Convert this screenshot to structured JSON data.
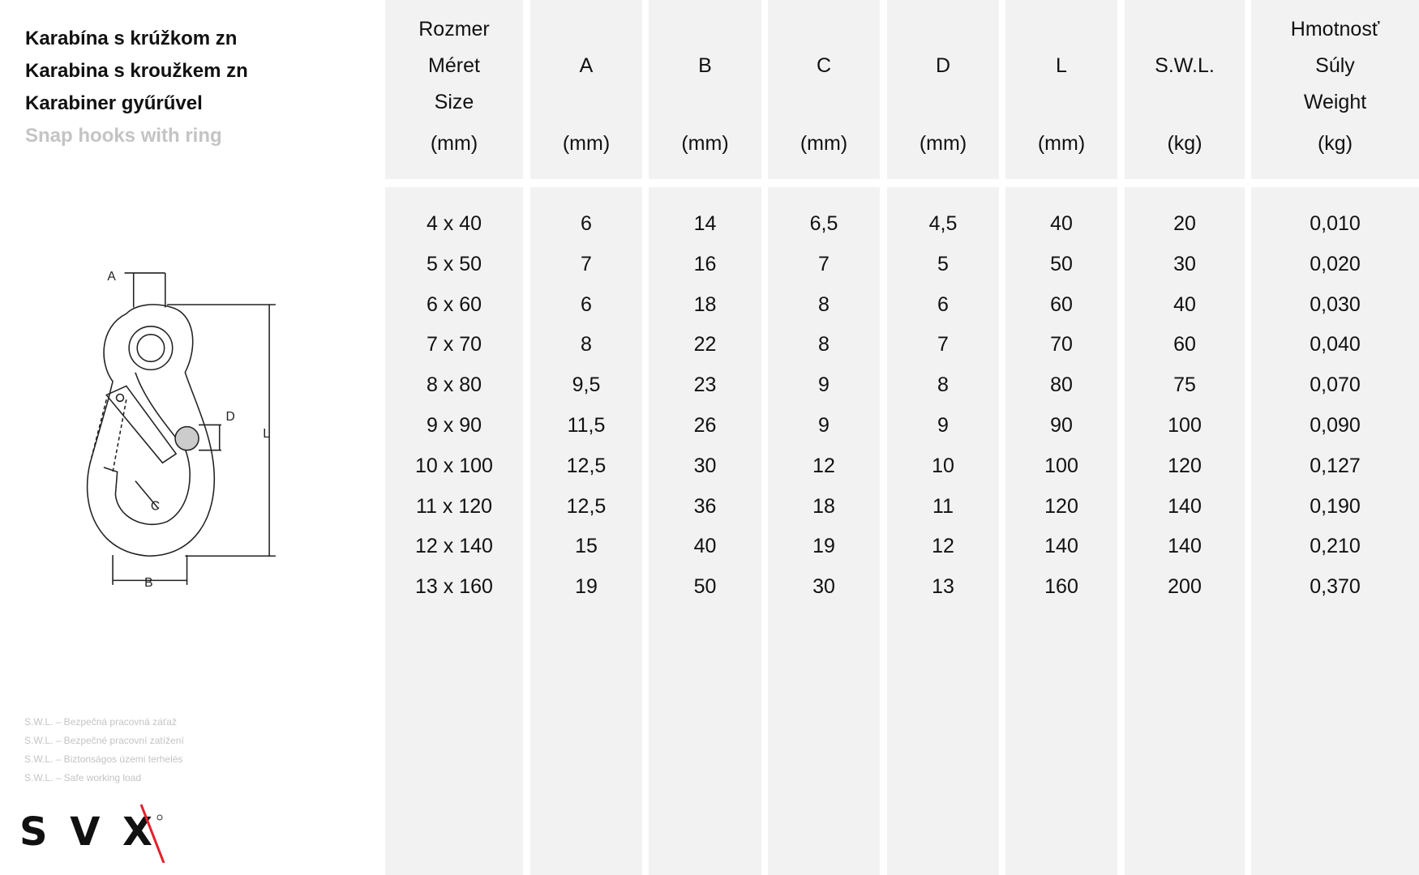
{
  "titles": [
    "Karabína s krúžkom zn",
    "Karabina s kroužkem zn",
    "Karabiner gyűrűvel",
    "Snap hooks with ring"
  ],
  "columns": [
    {
      "lines": [
        "Rozmer",
        "Méret",
        "Size"
      ],
      "unit": "(mm)"
    },
    {
      "lines": [
        "",
        "A",
        ""
      ],
      "unit": "(mm)"
    },
    {
      "lines": [
        "",
        "B",
        ""
      ],
      "unit": "(mm)"
    },
    {
      "lines": [
        "",
        "C",
        ""
      ],
      "unit": "(mm)"
    },
    {
      "lines": [
        "",
        "D",
        ""
      ],
      "unit": "(mm)"
    },
    {
      "lines": [
        "",
        "L",
        ""
      ],
      "unit": "(mm)"
    },
    {
      "lines": [
        "",
        "S.W.L.",
        ""
      ],
      "unit": "(kg)"
    },
    {
      "lines": [
        "Hmotnosť",
        "Súly",
        "Weight"
      ],
      "unit": "(kg)"
    }
  ],
  "rows": [
    [
      "4 x 40",
      "6",
      "14",
      "6,5",
      "4,5",
      "40",
      "20",
      "0,010"
    ],
    [
      "5 x 50",
      "7",
      "16",
      "7",
      "5",
      "50",
      "30",
      "0,020"
    ],
    [
      "6 x 60",
      "6",
      "18",
      "8",
      "6",
      "60",
      "40",
      "0,030"
    ],
    [
      "7 x 70",
      "8",
      "22",
      "8",
      "7",
      "70",
      "60",
      "0,040"
    ],
    [
      "8 x 80",
      "9,5",
      "23",
      "9",
      "8",
      "80",
      "75",
      "0,070"
    ],
    [
      "9 x 90",
      "11,5",
      "26",
      "9",
      "9",
      "90",
      "100",
      "0,090"
    ],
    [
      "10 x 100",
      "12,5",
      "30",
      "12",
      "10",
      "100",
      "120",
      "0,127"
    ],
    [
      "11 x 120",
      "12,5",
      "36",
      "18",
      "11",
      "120",
      "140",
      "0,190"
    ],
    [
      "12 x 140",
      "15",
      "40",
      "19",
      "12",
      "140",
      "140",
      "0,210"
    ],
    [
      "13 x 160",
      "19",
      "50",
      "30",
      "13",
      "160",
      "200",
      "0,370"
    ]
  ],
  "diagram_labels": {
    "a": "A",
    "b": "B",
    "c": "C",
    "d": "D",
    "l": "L"
  },
  "notes": [
    "S.W.L. – Bezpečná pracovná záťaž",
    "S.W.L. – Bezpečné pracovní zatížení",
    "S.W.L. – Biztonságos územi terhelés",
    "S.W.L. – Safe working load"
  ],
  "logo": {
    "text": "SVX",
    "accent": "#e3202a"
  }
}
